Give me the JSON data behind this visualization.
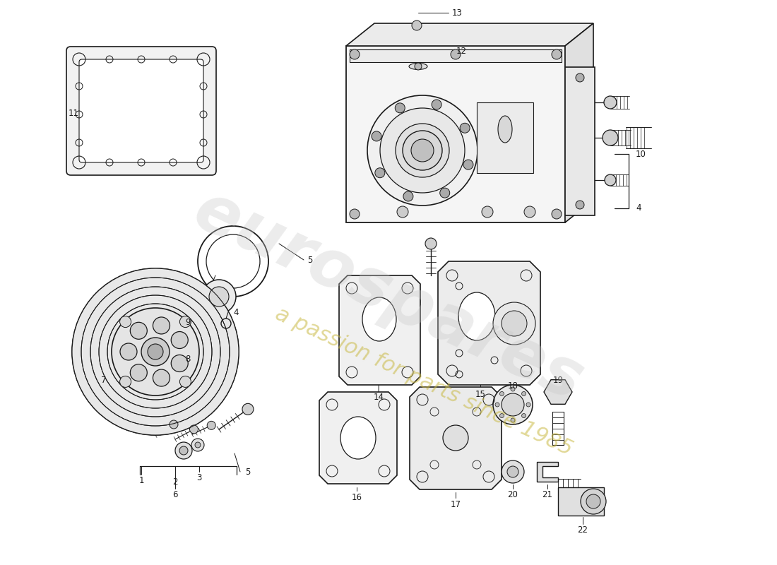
{
  "bg_color": "#ffffff",
  "lc": "#1a1a1a",
  "fig_w": 11.0,
  "fig_h": 8.0,
  "dpi": 100,
  "wm1": "eurospares",
  "wm2": "a passion for parts since 1985"
}
